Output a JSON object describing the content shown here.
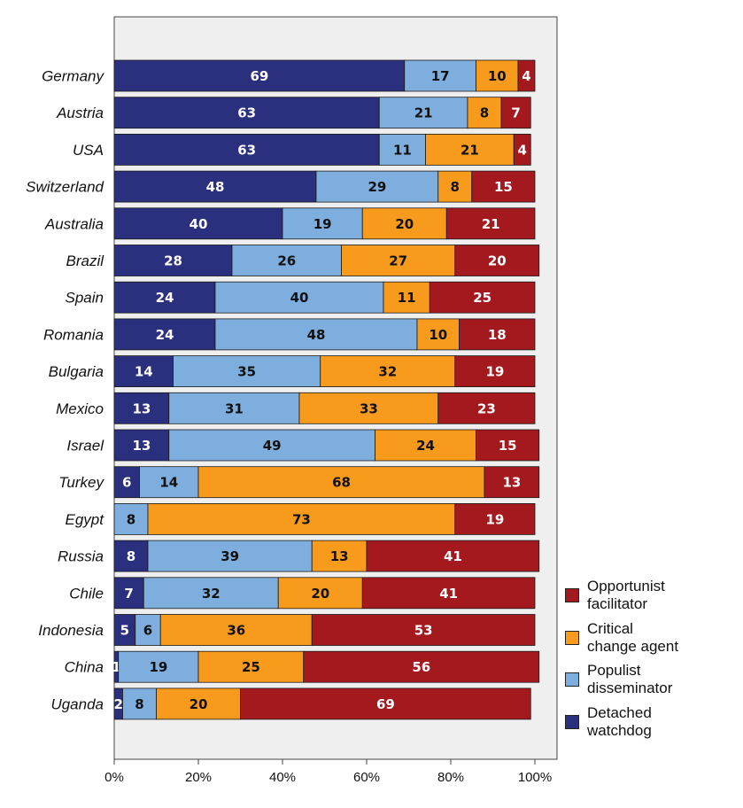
{
  "chart_data": {
    "type": "bar",
    "orientation": "horizontal",
    "stacked": true,
    "categories": [
      "Germany",
      "Austria",
      "USA",
      "Switzerland",
      "Australia",
      "Brazil",
      "Spain",
      "Romania",
      "Bulgaria",
      "Mexico",
      "Israel",
      "Turkey",
      "Egypt",
      "Russia",
      "Chile",
      "Indonesia",
      "China",
      "Uganda"
    ],
    "series": [
      {
        "name": "Detached watchdog",
        "color": "#2a2f7e",
        "label_color": "#ffffff",
        "values": [
          69,
          63,
          63,
          48,
          40,
          28,
          24,
          24,
          14,
          13,
          13,
          6,
          0,
          8,
          7,
          5,
          1,
          2
        ]
      },
      {
        "name": "Populist disseminator",
        "color": "#7eaede",
        "label_color": "#111111",
        "values": [
          17,
          21,
          11,
          29,
          19,
          26,
          40,
          48,
          35,
          31,
          49,
          14,
          8,
          39,
          32,
          6,
          19,
          8
        ]
      },
      {
        "name": "Critical change agent",
        "color": "#f89a1c",
        "label_color": "#111111",
        "values": [
          10,
          8,
          21,
          8,
          20,
          27,
          11,
          10,
          32,
          33,
          24,
          68,
          73,
          13,
          20,
          36,
          25,
          20
        ]
      },
      {
        "name": "Opportunist facilitator",
        "color": "#a3191e",
        "label_color": "#ffffff",
        "values": [
          4,
          7,
          4,
          15,
          21,
          20,
          25,
          18,
          19,
          23,
          15,
          13,
          19,
          41,
          41,
          53,
          56,
          69
        ]
      }
    ],
    "xlim": [
      0,
      100
    ],
    "x_ticks": [
      "0%",
      "20%",
      "40%",
      "60%",
      "80%",
      "100%"
    ],
    "legend": {
      "placement": "right-bottom",
      "entries": [
        {
          "label": "Opportunist\nfacilitator",
          "color": "#a3191e"
        },
        {
          "label": "Critical\nchange agent",
          "color": "#f89a1c"
        },
        {
          "label": "Populist\ndisseminator",
          "color": "#7eaede"
        },
        {
          "label": "Detached\nwatchdog",
          "color": "#2a2f7e"
        }
      ]
    },
    "plot_background": "#efefef",
    "grid": false
  }
}
